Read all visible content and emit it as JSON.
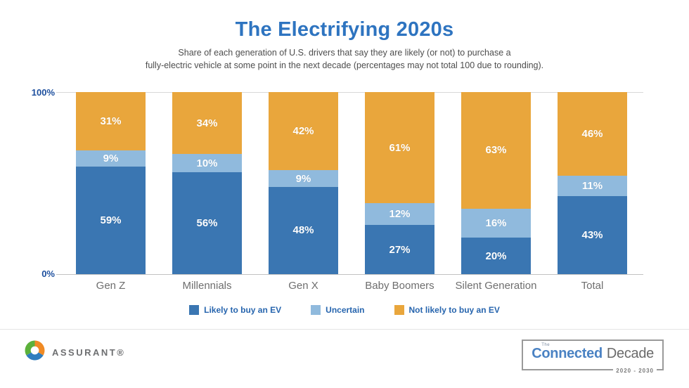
{
  "header": {
    "title": "The Electrifying 2020s",
    "subtitle_line1": "Share of each generation of U.S. drivers that say they are likely (or not) to purchase a",
    "subtitle_line2": "fully-electric vehicle at some point in the next decade (percentages may not total 100 due to rounding)."
  },
  "chart_data": {
    "type": "bar",
    "stacked": true,
    "title": "The Electrifying 2020s",
    "categories": [
      "Gen Z",
      "Millennials",
      "Gen X",
      "Baby Boomers",
      "Silent Generation",
      "Total"
    ],
    "series": [
      {
        "name": "Likely to buy an EV",
        "color": "#3a76b2",
        "values": [
          59,
          56,
          48,
          27,
          20,
          43
        ]
      },
      {
        "name": "Uncertain",
        "color": "#90badd",
        "values": [
          9,
          10,
          9,
          12,
          16,
          11
        ]
      },
      {
        "name": "Not likely to buy an EV",
        "color": "#e9a63c",
        "values": [
          31,
          34,
          42,
          61,
          63,
          46
        ]
      }
    ],
    "value_suffix": "%",
    "ylim": [
      0,
      100
    ],
    "grid": "top-and-baseline-only",
    "legend_position": "bottom"
  },
  "axis": {
    "top": "100%",
    "bottom": "0%"
  },
  "footer": {
    "brand_name": "ASSURANT®",
    "badge": {
      "the": "The",
      "connected": "Connected",
      "decade": "Decade",
      "years": "2020 - 2030"
    }
  },
  "colors": {
    "title_blue": "#2e74c0",
    "axis_label_blue": "#1d4f9e",
    "legend_text_blue": "#2765ae",
    "category_gray": "#6e6e6e",
    "likely_blue": "#3a76b2",
    "uncertain_light_blue": "#90badd",
    "not_likely_orange": "#e9a63c"
  }
}
